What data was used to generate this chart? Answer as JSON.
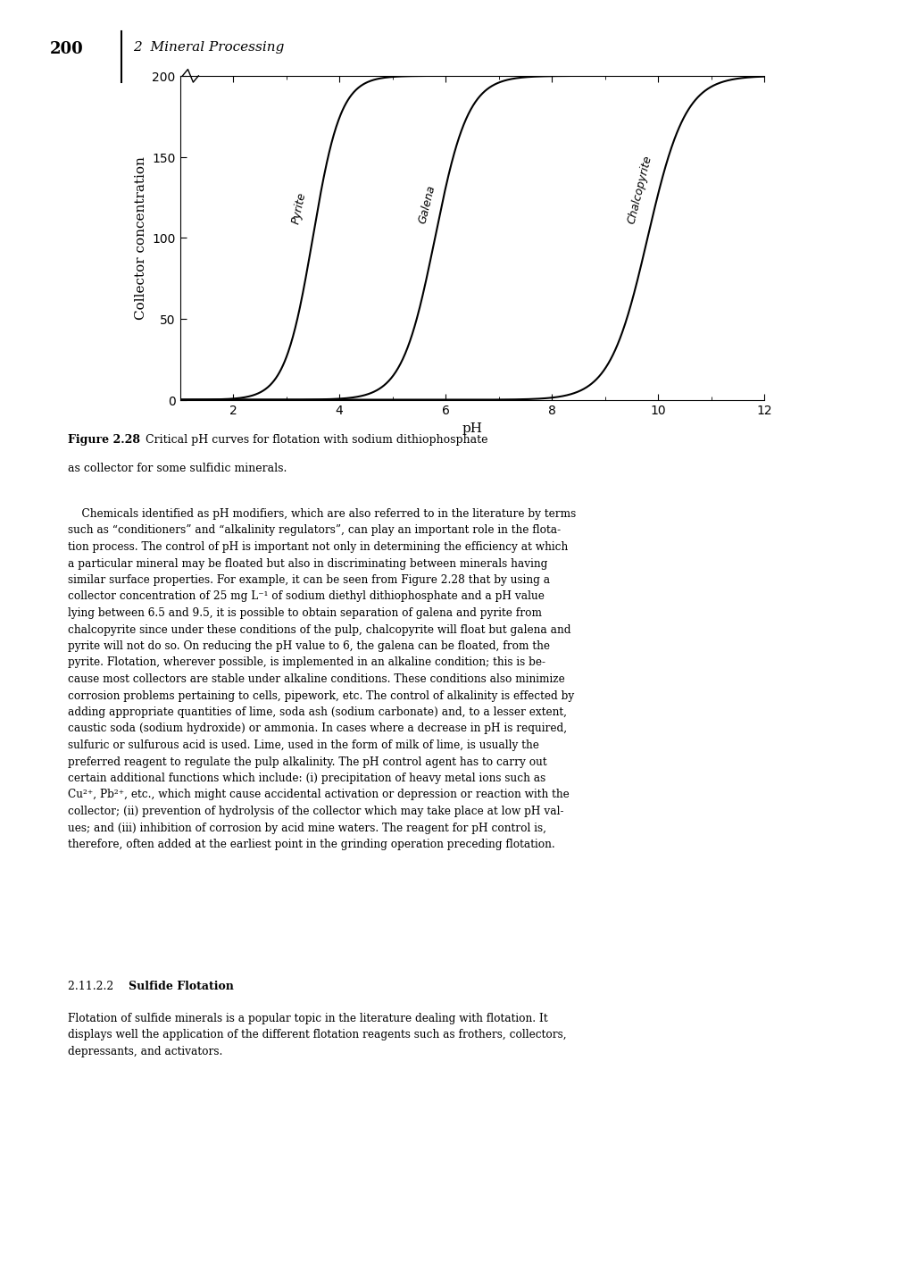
{
  "title": "Figure 2.28",
  "title_desc": "Critical pH curves for flotation with sodium dithiophosphate as collector for some sulfidic minerals.",
  "xlabel": "pH",
  "ylabel": "Collector concentration",
  "xlim": [
    1,
    12
  ],
  "ylim": [
    0,
    200
  ],
  "xticks": [
    2,
    4,
    6,
    8,
    10,
    12
  ],
  "yticks": [
    0,
    50,
    100,
    150,
    200
  ],
  "minerals": [
    "Pyrite",
    "Galena",
    "Chalcopyrite"
  ],
  "page_number": "200",
  "chapter_header": "2  Mineral Processing",
  "background_color": "#ffffff",
  "line_color": "#000000",
  "font_size_axis_label": 11,
  "font_size_tick": 10,
  "font_size_caption": 10,
  "font_size_header": 12,
  "caption_bold": "Figure 2.28",
  "caption_normal": "   Critical pH curves for flotation with sodium dithiophosphate\nas collector for some sulfidic minerals.",
  "body_text_1": "    Chemicals identified as pH modifiers, which are also referred to in the literature by terms\nsuch as “conditioners” and “alkalinity regulators”, can play an important role in the flota-\ntion process. The control of pH is important not only in determining the efficiency at which\na particular mineral may be floated but also in discriminating between minerals having\nsimilar surface properties. For example, it can be seen from Figure 2.28 that by using a\ncollector concentration of 25 mg L⁻¹ of sodium diethyl dithiophosphate and a pH value\nlying between 6.5 and 9.5, it is possible to obtain separation of galena and pyrite from\nchalcopyrite since under these conditions of the pulp, chalcopyrite will float but galena and\npyrite will not do so. On reducing the pH value to 6, the galena can be floated, from the\npyrite. Flotation, wherever possible, is implemented in an alkaline condition; this is be-\ncause most collectors are stable under alkaline conditions. These conditions also minimize\ncorrosion problems pertaining to cells, pipework, etc. The control of alkalinity is effected by\nadding appropriate quantities of lime, soda ash (sodium carbonate) and, to a lesser extent,\ncaustic soda (sodium hydroxide) or ammonia. In cases where a decrease in pH is required,\nsulfuric or sulfurous acid is used. Lime, used in the form of milk of lime, is usually the\npreferred reagent to regulate the pulp alkalinity. The pH control agent has to carry out\ncertain additional functions which include: (i) precipitation of heavy metal ions such as\nCu²⁺, Pb²⁺, etc., which might cause accidental activation or depression or reaction with the\ncollector; (ii) prevention of hydrolysis of the collector which may take place at low pH val-\nues; and (iii) inhibition of corrosion by acid mine waters. The reagent for pH control is,\ntherefore, often added at the earliest point in the grinding operation preceding flotation.",
  "section_header_normal": "2.11.2.2  ",
  "section_header_bold": "Sulfide Flotation",
  "body_text_2": "Flotation of sulfide minerals is a popular topic in the literature dealing with flotation. It\ndisplays well the application of the different flotation reagents such as frothers, collectors,\ndepressants, and activators."
}
